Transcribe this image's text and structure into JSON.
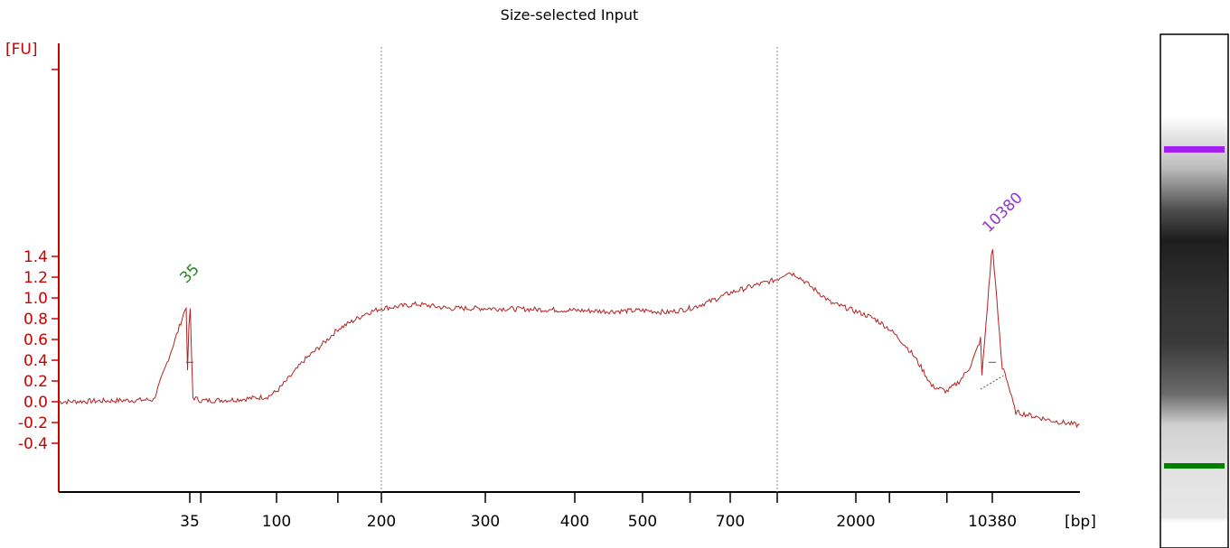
{
  "chart_data": {
    "type": "line",
    "title": "Size-selected Input",
    "ylabel": "[FU]",
    "xlabel": "[bp]",
    "ylim": [
      -0.4,
      1.65
    ],
    "y_ticks": [
      "1.4",
      "1.2",
      "1.0",
      "0.8",
      "0.6",
      "0.4",
      "0.2",
      "0.0",
      "-0.2",
      "-0.4"
    ],
    "x_tick_labels": [
      "35",
      "100",
      "200",
      "300",
      "400",
      "500",
      "700",
      "2000",
      "10380"
    ],
    "series": [
      {
        "x": [
          20,
          30,
          35,
          35.5,
          40,
          60,
          90,
          100,
          120,
          150,
          180,
          200,
          230,
          260,
          300,
          350,
          400,
          450,
          500,
          550,
          600,
          650,
          700,
          750,
          800,
          900,
          1000,
          1200,
          1500,
          2000,
          2500,
          3000,
          4000,
          5000,
          6000,
          7000,
          8000,
          9000,
          10380,
          11000,
          12000,
          15000,
          18000
        ],
        "y": [
          0.0,
          0.02,
          1.03,
          0.05,
          0.01,
          0.02,
          0.05,
          0.1,
          0.4,
          0.7,
          0.85,
          0.9,
          0.94,
          0.9,
          0.9,
          0.89,
          0.88,
          0.87,
          0.88,
          0.86,
          0.9,
          0.97,
          1.05,
          1.12,
          1.18,
          1.25,
          1.22,
          1.1,
          0.95,
          0.87,
          0.8,
          0.7,
          0.45,
          0.15,
          0.1,
          0.2,
          0.35,
          0.6,
          1.52,
          0.4,
          -0.1,
          -0.18,
          -0.23
        ]
      }
    ],
    "peaks": [
      {
        "label": "35",
        "x": 35,
        "y": 1.03,
        "color": "#228822"
      },
      {
        "label": "10380",
        "x": 10380,
        "y": 1.52,
        "color": "#9933cc"
      }
    ],
    "gel_bands": [
      {
        "color": "#a020f0",
        "position": "upper marker"
      },
      {
        "color": "#008000",
        "position": "lower marker"
      }
    ],
    "grid": false
  }
}
